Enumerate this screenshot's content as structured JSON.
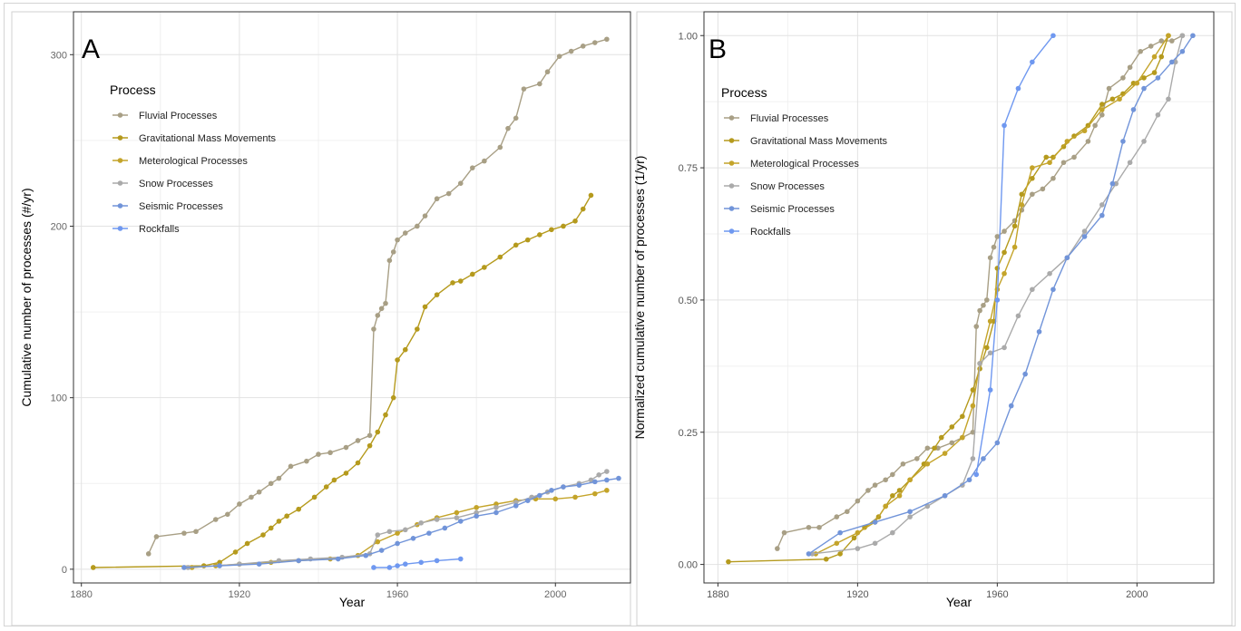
{
  "figure": {
    "colors": {
      "fluvial": "#a89f85",
      "gravitational": "#b59a1d",
      "meteorological": "#c4a42a",
      "snow": "#aaaaaa",
      "seismic": "#7194d9",
      "rockfalls": "#6f98f0"
    }
  },
  "chart_data": [
    {
      "panel_label": "A",
      "type": "line",
      "title": "",
      "xlabel": "Year",
      "ylabel": "Cumulative number of processes (#/yr)",
      "xlim": [
        1878,
        2019
      ],
      "ylim": [
        -8,
        325
      ],
      "xticks": [
        1880,
        1920,
        1960,
        2000
      ],
      "yticks": [
        0,
        100,
        200,
        300
      ],
      "grid": true,
      "legend": {
        "title": "Process",
        "placement": "top-left"
      },
      "series": [
        {
          "name": "Fluvial Processes",
          "color_key": "fluvial",
          "x": [
            1897,
            1899,
            1906,
            1909,
            1914,
            1917,
            1920,
            1923,
            1925,
            1928,
            1930,
            1933,
            1937,
            1940,
            1943,
            1947,
            1950,
            1953,
            1954,
            1955,
            1956,
            1957,
            1958,
            1959,
            1960,
            1962,
            1965,
            1967,
            1970,
            1973,
            1976,
            1979,
            1982,
            1986,
            1988,
            1990,
            1992,
            1996,
            1998,
            2001,
            2004,
            2007,
            2010,
            2013
          ],
          "y": [
            9,
            19,
            21,
            22,
            29,
            32,
            38,
            42,
            45,
            50,
            53,
            60,
            63,
            67,
            68,
            71,
            75,
            78,
            140,
            148,
            152,
            155,
            180,
            185,
            192,
            196,
            200,
            206,
            216,
            219,
            225,
            234,
            238,
            246,
            257,
            263,
            280,
            283,
            290,
            299,
            302,
            305,
            307,
            309
          ]
        },
        {
          "name": "Gravitational Mass Movements",
          "color_key": "gravitational",
          "x": [
            1883,
            1911,
            1915,
            1919,
            1922,
            1926,
            1928,
            1930,
            1932,
            1935,
            1939,
            1942,
            1944,
            1947,
            1950,
            1953,
            1955,
            1957,
            1959,
            1960,
            1962,
            1965,
            1967,
            1970,
            1974,
            1976,
            1979,
            1982,
            1986,
            1990,
            1993,
            1996,
            1999,
            2002,
            2005,
            2007,
            2009
          ],
          "y": [
            1,
            2,
            4,
            10,
            15,
            20,
            24,
            28,
            31,
            35,
            42,
            48,
            52,
            56,
            62,
            72,
            80,
            90,
            100,
            122,
            128,
            140,
            153,
            160,
            167,
            168,
            172,
            176,
            182,
            189,
            192,
            195,
            198,
            200,
            203,
            210,
            218
          ]
        },
        {
          "name": "Meterological Processes",
          "color_key": "meteorological",
          "x": [
            1908,
            1914,
            1920,
            1928,
            1935,
            1943,
            1950,
            1955,
            1960,
            1965,
            1970,
            1975,
            1980,
            1985,
            1990,
            1995,
            2000,
            2005,
            2010,
            2013
          ],
          "y": [
            1,
            2,
            3,
            4,
            5,
            6,
            8,
            16,
            21,
            26,
            30,
            33,
            36,
            38,
            40,
            41,
            41,
            42,
            44,
            46
          ]
        },
        {
          "name": "Snow Processes",
          "color_key": "snow",
          "x": [
            1907,
            1920,
            1930,
            1938,
            1946,
            1953,
            1955,
            1958,
            1962,
            1966,
            1970,
            1975,
            1980,
            1985,
            1990,
            1994,
            1998,
            2002,
            2006,
            2009,
            2011,
            2013
          ],
          "y": [
            1,
            3,
            5,
            6,
            7,
            9,
            20,
            22,
            23,
            27,
            29,
            30,
            33,
            36,
            39,
            42,
            45,
            48,
            50,
            52,
            55,
            57
          ]
        },
        {
          "name": "Seismic Processes",
          "color_key": "seismic",
          "x": [
            1906,
            1915,
            1925,
            1935,
            1945,
            1952,
            1956,
            1960,
            1964,
            1968,
            1972,
            1976,
            1980,
            1985,
            1990,
            1993,
            1996,
            1999,
            2002,
            2006,
            2010,
            2013,
            2016
          ],
          "y": [
            1,
            2,
            3,
            5,
            6,
            8,
            11,
            15,
            18,
            21,
            24,
            28,
            31,
            33,
            37,
            40,
            43,
            46,
            48,
            49,
            51,
            52,
            53
          ]
        },
        {
          "name": "Rockfalls",
          "color_key": "rockfalls",
          "x": [
            1954,
            1958,
            1960,
            1962,
            1966,
            1970,
            1976
          ],
          "y": [
            1,
            1,
            2,
            3,
            4,
            5,
            6
          ]
        }
      ]
    },
    {
      "panel_label": "B",
      "type": "line",
      "title": "",
      "xlabel": "Year",
      "ylabel": "Normalized cumulative number of processes (1/yr)",
      "xlim": [
        1876,
        2022
      ],
      "ylim": [
        -0.035,
        1.045
      ],
      "xticks": [
        1880,
        1920,
        1960,
        2000
      ],
      "yticks": [
        0.0,
        0.25,
        0.5,
        0.75,
        1.0
      ],
      "ytick_labels": [
        "0.00",
        "0.25",
        "0.50",
        "0.75",
        "1.00"
      ],
      "grid": true,
      "legend": {
        "title": "Process",
        "placement": "top-left"
      },
      "series": [
        {
          "name": "Fluvial Processes",
          "color_key": "fluvial",
          "x": [
            1897,
            1899,
            1906,
            1909,
            1914,
            1917,
            1920,
            1923,
            1925,
            1928,
            1930,
            1933,
            1937,
            1940,
            1943,
            1947,
            1950,
            1953,
            1954,
            1955,
            1956,
            1957,
            1958,
            1959,
            1960,
            1962,
            1965,
            1967,
            1970,
            1973,
            1976,
            1979,
            1982,
            1986,
            1988,
            1990,
            1992,
            1996,
            1998,
            2001,
            2004,
            2007,
            2010,
            2013
          ],
          "y": [
            0.03,
            0.06,
            0.07,
            0.07,
            0.09,
            0.1,
            0.12,
            0.14,
            0.15,
            0.16,
            0.17,
            0.19,
            0.2,
            0.22,
            0.22,
            0.23,
            0.24,
            0.25,
            0.45,
            0.48,
            0.49,
            0.5,
            0.58,
            0.6,
            0.62,
            0.63,
            0.65,
            0.67,
            0.7,
            0.71,
            0.73,
            0.76,
            0.77,
            0.8,
            0.83,
            0.85,
            0.9,
            0.92,
            0.94,
            0.97,
            0.98,
            0.99,
            0.99,
            1.0
          ]
        },
        {
          "name": "Gravitational Mass Movements",
          "color_key": "gravitational",
          "x": [
            1883,
            1911,
            1915,
            1919,
            1922,
            1926,
            1928,
            1930,
            1932,
            1935,
            1939,
            1942,
            1944,
            1947,
            1950,
            1953,
            1955,
            1957,
            1959,
            1960,
            1962,
            1965,
            1967,
            1970,
            1974,
            1976,
            1979,
            1982,
            1986,
            1990,
            1993,
            1996,
            1999,
            2002,
            2005,
            2007,
            2009
          ],
          "y": [
            0.005,
            0.01,
            0.02,
            0.05,
            0.07,
            0.09,
            0.11,
            0.13,
            0.14,
            0.16,
            0.19,
            0.22,
            0.24,
            0.26,
            0.28,
            0.33,
            0.37,
            0.41,
            0.46,
            0.56,
            0.59,
            0.64,
            0.7,
            0.73,
            0.77,
            0.77,
            0.79,
            0.81,
            0.83,
            0.87,
            0.88,
            0.89,
            0.91,
            0.92,
            0.93,
            0.96,
            1.0
          ]
        },
        {
          "name": "Meterological Processes",
          "color_key": "meteorological",
          "x": [
            1908,
            1914,
            1920,
            1925,
            1928,
            1932,
            1935,
            1940,
            1945,
            1950,
            1953,
            1955,
            1958,
            1960,
            1962,
            1965,
            1967,
            1970,
            1975,
            1980,
            1985,
            1990,
            1995,
            2000,
            2005,
            2009
          ],
          "y": [
            0.02,
            0.04,
            0.06,
            0.08,
            0.11,
            0.13,
            0.16,
            0.19,
            0.21,
            0.24,
            0.3,
            0.38,
            0.46,
            0.52,
            0.55,
            0.6,
            0.68,
            0.75,
            0.76,
            0.8,
            0.82,
            0.86,
            0.88,
            0.91,
            0.96,
            1.0
          ]
        },
        {
          "name": "Snow Processes",
          "color_key": "snow",
          "x": [
            1907,
            1920,
            1925,
            1930,
            1935,
            1940,
            1945,
            1950,
            1953,
            1955,
            1958,
            1962,
            1966,
            1970,
            1975,
            1980,
            1985,
            1990,
            1994,
            1998,
            2002,
            2006,
            2009,
            2011,
            2013
          ],
          "y": [
            0.02,
            0.03,
            0.04,
            0.06,
            0.09,
            0.11,
            0.13,
            0.15,
            0.2,
            0.38,
            0.4,
            0.41,
            0.47,
            0.52,
            0.55,
            0.58,
            0.63,
            0.68,
            0.72,
            0.76,
            0.8,
            0.85,
            0.88,
            0.95,
            1.0
          ]
        },
        {
          "name": "Seismic Processes",
          "color_key": "seismic",
          "x": [
            1906,
            1915,
            1925,
            1935,
            1945,
            1952,
            1956,
            1960,
            1964,
            1968,
            1972,
            1976,
            1980,
            1985,
            1990,
            1993,
            1996,
            1999,
            2002,
            2006,
            2010,
            2013,
            2016
          ],
          "y": [
            0.02,
            0.06,
            0.08,
            0.1,
            0.13,
            0.16,
            0.2,
            0.23,
            0.3,
            0.36,
            0.44,
            0.52,
            0.58,
            0.62,
            0.66,
            0.72,
            0.8,
            0.86,
            0.9,
            0.92,
            0.95,
            0.97,
            1.0
          ]
        },
        {
          "name": "Rockfalls",
          "color_key": "rockfalls",
          "x": [
            1954,
            1958,
            1960,
            1962,
            1966,
            1970,
            1976
          ],
          "y": [
            0.17,
            0.33,
            0.5,
            0.83,
            0.9,
            0.95,
            1.0
          ]
        }
      ]
    }
  ]
}
